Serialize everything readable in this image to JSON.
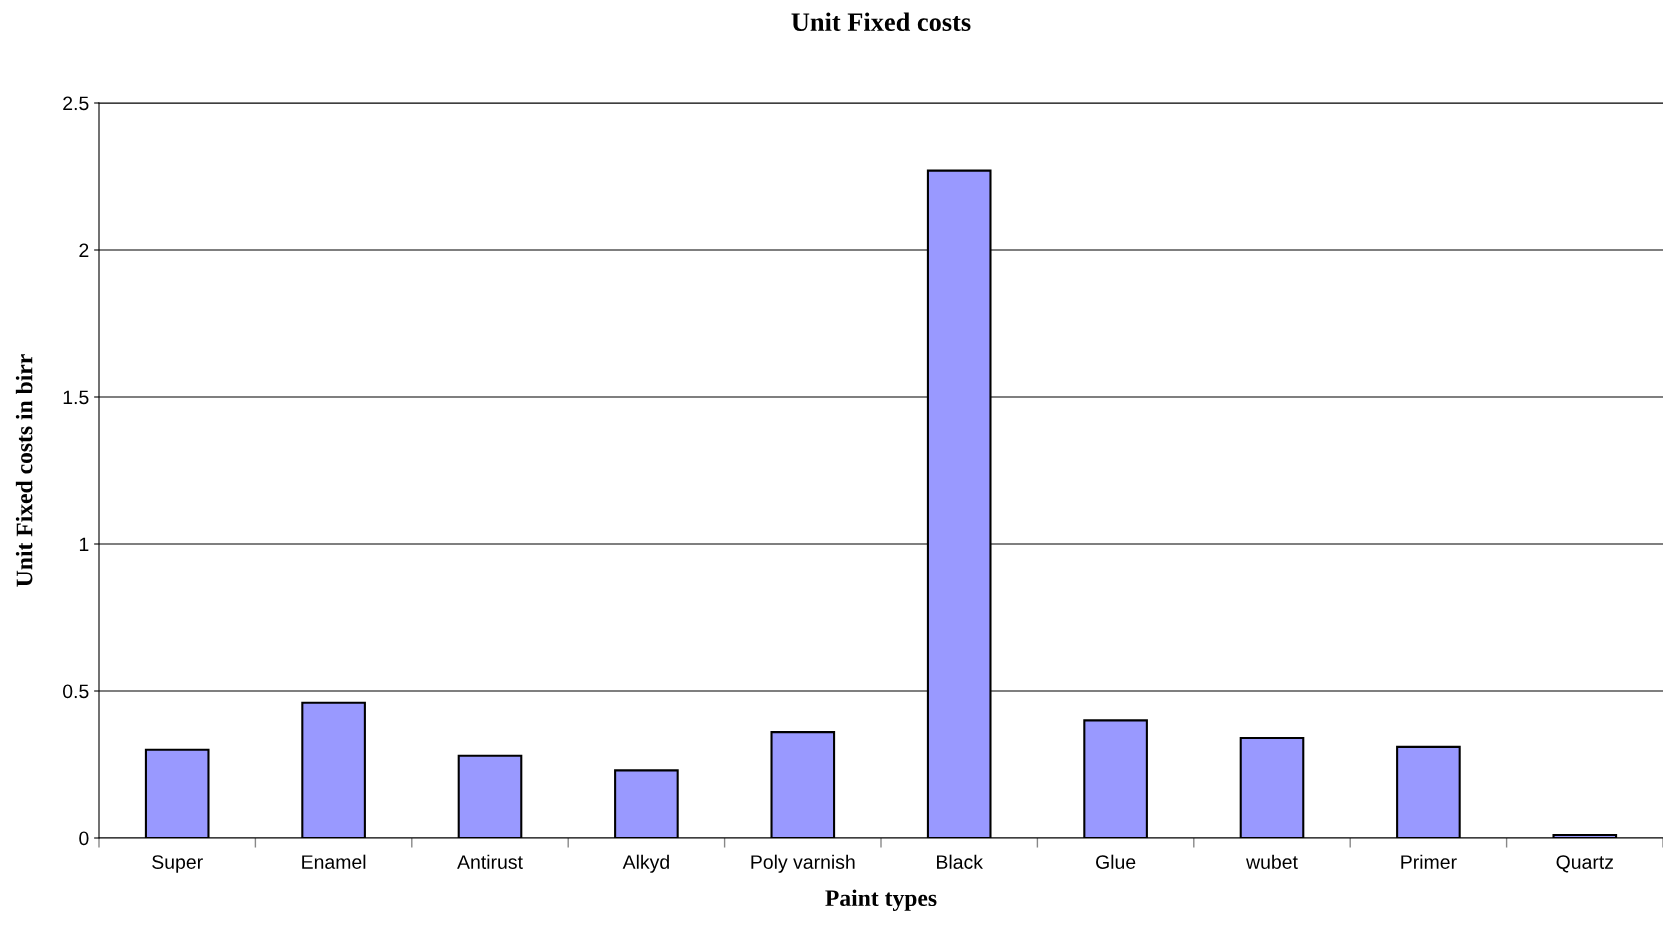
{
  "chart_data": {
    "type": "bar",
    "title": "Unit Fixed costs",
    "xlabel": "Paint types",
    "ylabel": "Unit Fixed costs in birr",
    "categories": [
      "Super",
      "Enamel",
      "Antirust",
      "Alkyd",
      "Poly varnish",
      "Black",
      "Glue",
      "wubet",
      "Primer",
      "Quartz"
    ],
    "values": [
      0.3,
      0.46,
      0.28,
      0.23,
      0.36,
      2.27,
      0.4,
      0.34,
      0.31,
      0.01
    ],
    "color": "#9999ff",
    "ylim": [
      0,
      2.5
    ],
    "yticks": [
      0,
      0.5,
      1,
      1.5,
      2,
      2.5
    ],
    "grid": "y",
    "legend": false
  }
}
